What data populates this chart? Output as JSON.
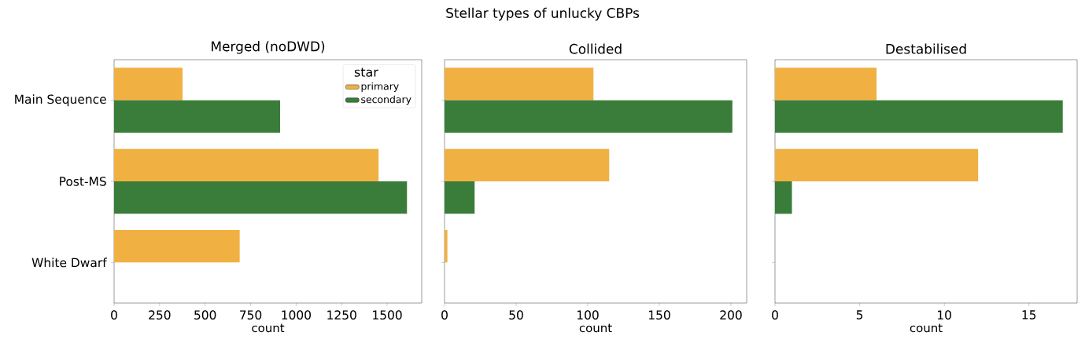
{
  "chart_data": [
    {
      "type": "bar",
      "orientation": "horizontal",
      "title": "Merged (noDWD)",
      "xlabel": "count",
      "legend_title": "star",
      "legend": "top right",
      "annotations": [
        "Stellar types of unlucky CBPs"
      ],
      "categories": [
        "Main Sequence",
        "Post-MS",
        "White Dwarf"
      ],
      "series": [
        {
          "name": "primary",
          "color": "#f0b142",
          "values": [
            376,
            1453,
            690
          ]
        },
        {
          "name": "secondary",
          "color": "#3a7d3a",
          "values": [
            912,
            1609,
            null
          ]
        }
      ],
      "xlim": [
        0,
        1690
      ],
      "xticks": [
        0,
        250,
        500,
        750,
        1000,
        1250,
        1500
      ]
    },
    {
      "type": "bar",
      "orientation": "horizontal",
      "title": "Collided",
      "xlabel": "count",
      "tick_labels": "x",
      "categories": [
        null,
        null,
        null
      ],
      "series": [
        {
          "color": "#f0b142",
          "values": [
            104,
            115,
            2
          ]
        },
        {
          "color": "#3a7d3a",
          "values": [
            201,
            21,
            null
          ]
        }
      ],
      "xlim": [
        0,
        211
      ],
      "xticks": [
        0,
        50,
        100,
        150,
        200
      ]
    },
    {
      "type": "bar",
      "orientation": "horizontal",
      "title": "Destabilised",
      "xlabel": "count",
      "tick_labels": "x",
      "categories": [
        null,
        null,
        null
      ],
      "series": [
        {
          "color": "#f0b142",
          "values": [
            6,
            12,
            null
          ]
        },
        {
          "color": "#3a7d3a",
          "values": [
            17,
            1,
            null
          ]
        }
      ],
      "xlim": [
        0,
        17.85
      ],
      "xticks": [
        0,
        5,
        10,
        15
      ]
    }
  ]
}
